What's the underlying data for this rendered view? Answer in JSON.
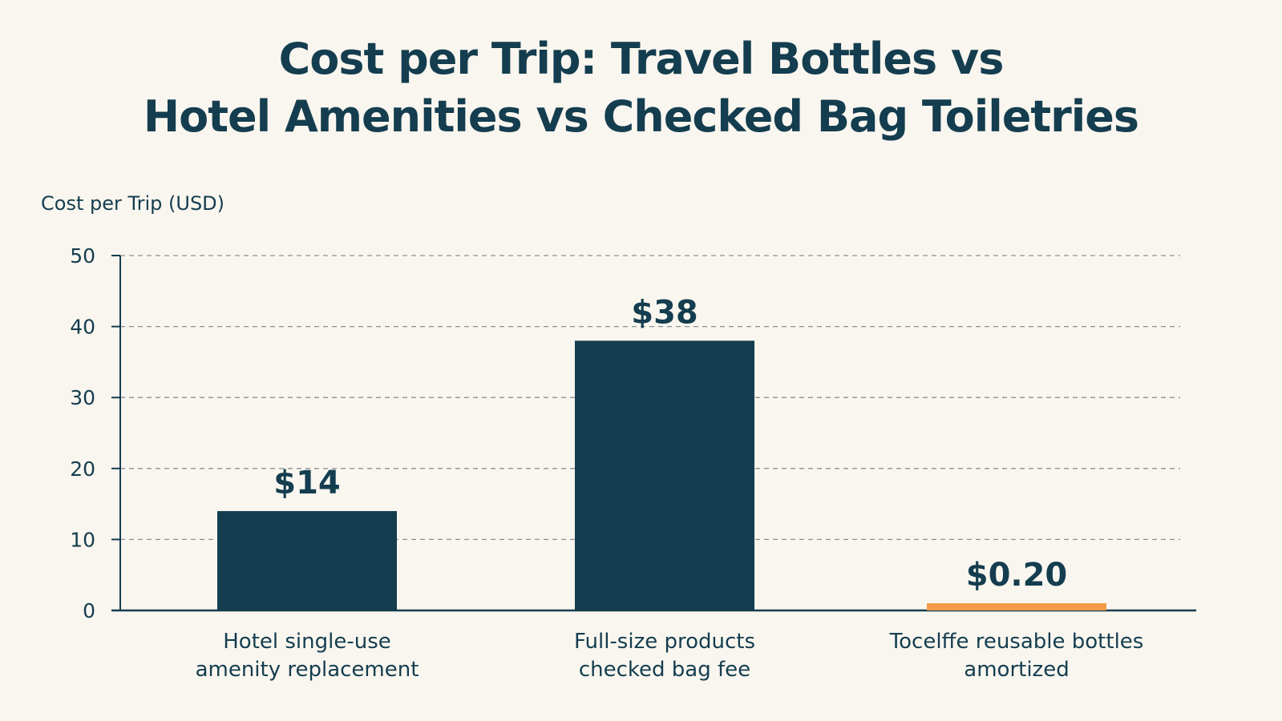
{
  "chart_data": {
    "type": "bar",
    "title_lines": [
      "Cost per Trip: Travel Bottles vs",
      "Hotel Amenities vs Checked Bag Toiletries"
    ],
    "ylabel": "Cost per Trip (USD)",
    "xlabel": "",
    "ylim": [
      0,
      50
    ],
    "yticks": [
      0,
      10,
      20,
      30,
      40,
      50
    ],
    "grid": true,
    "categories": [
      [
        "Hotel single-use",
        "amenity replacement"
      ],
      [
        "Full-size products",
        "checked bag fee"
      ],
      [
        "Tocelffe reusable bottles",
        "amortized"
      ]
    ],
    "values": [
      14,
      38,
      0.2
    ],
    "value_labels": [
      "$14",
      "$38",
      "$0.20"
    ],
    "bar_colors": [
      "#143d4f",
      "#143d4f",
      "#f39b48"
    ]
  }
}
